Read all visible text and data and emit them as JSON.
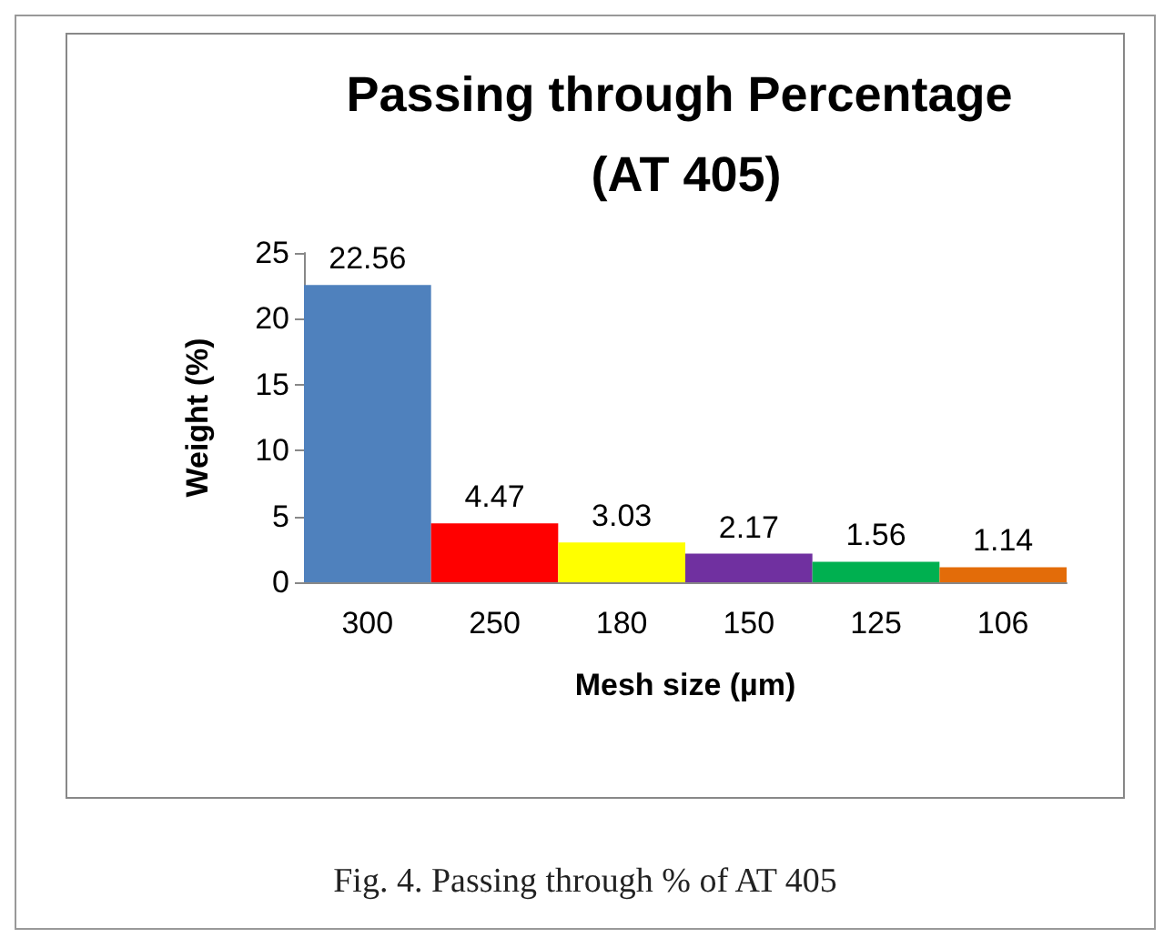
{
  "chart_data": {
    "type": "bar",
    "title": "Passing through Percentage (AT 405)",
    "xlabel": "Mesh size (µm)",
    "ylabel": "Weight (%)",
    "categories": [
      "300",
      "250",
      "180",
      "150",
      "125",
      "106"
    ],
    "values": [
      22.56,
      4.47,
      3.03,
      2.17,
      1.56,
      1.14
    ],
    "colors": [
      "#4f81bd",
      "#ff0000",
      "#ffff00",
      "#7030a0",
      "#00b050",
      "#e36c09"
    ],
    "ylim": [
      0,
      25
    ],
    "yticks": [
      0,
      5,
      10,
      15,
      20,
      25
    ],
    "grid": false,
    "data_labels": true,
    "annotations": [
      "Fig. 4. Passing through % of AT 405"
    ]
  }
}
